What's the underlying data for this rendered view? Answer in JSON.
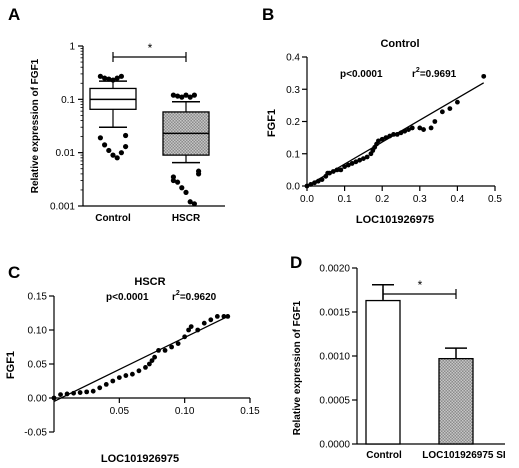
{
  "chart_data": [
    {
      "panel": "A",
      "type": "box",
      "ylabel": "Relative expression of FGF1",
      "yscale": "log",
      "ylim": [
        0.001,
        1
      ],
      "yticks": [
        "0.001",
        "0.01",
        "0.1",
        "1"
      ],
      "categories": [
        "Control",
        "HSCR"
      ],
      "significance": "*",
      "boxes": [
        {
          "name": "Control",
          "fill": "#ffffff",
          "whisker_low": 0.03,
          "q1": 0.065,
          "median": 0.1,
          "q3": 0.16,
          "whisker_high": 0.22,
          "outliers": [
            0.27,
            0.25,
            0.24,
            0.23,
            0.25,
            0.27,
            0.021,
            0.019,
            0.014,
            0.011,
            0.009,
            0.008,
            0.01,
            0.013
          ]
        },
        {
          "name": "HSCR",
          "fill": "#9a9a9a",
          "whisker_low": 0.0065,
          "q1": 0.009,
          "median": 0.023,
          "q3": 0.058,
          "whisker_high": 0.09,
          "outliers": [
            0.12,
            0.115,
            0.11,
            0.12,
            0.11,
            0.12,
            0.0045,
            0.0035,
            0.0028,
            0.0022,
            0.0018,
            0.0012,
            0.0011,
            0.004,
            0.003
          ]
        }
      ]
    },
    {
      "panel": "B",
      "type": "scatter",
      "title": "Control",
      "xlabel": "LOC101926975",
      "ylabel": "FGF1",
      "xlim": [
        0,
        0.5
      ],
      "ylim": [
        0,
        0.4
      ],
      "xticks": [
        "0.0",
        "0.1",
        "0.2",
        "0.3",
        "0.4",
        "0.5"
      ],
      "yticks": [
        "0.0",
        "0.1",
        "0.2",
        "0.3",
        "0.4"
      ],
      "p_value": "p<0.0001",
      "r2_prefix": "r",
      "r2_sup": "2",
      "r2_value": "=0.9691",
      "fit_line": [
        [
          0,
          0.0
        ],
        [
          0.47,
          0.32
        ]
      ],
      "points": [
        [
          0.0,
          0.0
        ],
        [
          0.01,
          0.005
        ],
        [
          0.02,
          0.01
        ],
        [
          0.03,
          0.015
        ],
        [
          0.04,
          0.02
        ],
        [
          0.05,
          0.03
        ],
        [
          0.055,
          0.04
        ],
        [
          0.06,
          0.04
        ],
        [
          0.07,
          0.045
        ],
        [
          0.08,
          0.05
        ],
        [
          0.09,
          0.05
        ],
        [
          0.1,
          0.06
        ],
        [
          0.11,
          0.065
        ],
        [
          0.12,
          0.07
        ],
        [
          0.13,
          0.075
        ],
        [
          0.14,
          0.08
        ],
        [
          0.15,
          0.085
        ],
        [
          0.16,
          0.09
        ],
        [
          0.17,
          0.1
        ],
        [
          0.175,
          0.11
        ],
        [
          0.18,
          0.12
        ],
        [
          0.185,
          0.13
        ],
        [
          0.19,
          0.14
        ],
        [
          0.2,
          0.145
        ],
        [
          0.21,
          0.15
        ],
        [
          0.22,
          0.155
        ],
        [
          0.23,
          0.16
        ],
        [
          0.24,
          0.16
        ],
        [
          0.25,
          0.165
        ],
        [
          0.26,
          0.17
        ],
        [
          0.27,
          0.175
        ],
        [
          0.28,
          0.18
        ],
        [
          0.3,
          0.18
        ],
        [
          0.31,
          0.175
        ],
        [
          0.33,
          0.18
        ],
        [
          0.34,
          0.2
        ],
        [
          0.36,
          0.23
        ],
        [
          0.38,
          0.24
        ],
        [
          0.4,
          0.26
        ],
        [
          0.47,
          0.34
        ]
      ]
    },
    {
      "panel": "C",
      "type": "scatter",
      "title": "HSCR",
      "xlabel": "LOC101926975",
      "ylabel": "FGF1",
      "xlim": [
        0,
        0.15
      ],
      "ylim": [
        -0.05,
        0.15
      ],
      "xticks": [
        "0.05",
        "0.10",
        "0.15"
      ],
      "yticks": [
        "-0.05",
        "0.00",
        "0.05",
        "0.10",
        "0.15"
      ],
      "p_value": "p<0.0001",
      "r2_prefix": "r",
      "r2_sup": "2",
      "r2_value": "=0.9620",
      "fit_line": [
        [
          0,
          -0.005
        ],
        [
          0.133,
          0.12
        ]
      ],
      "points": [
        [
          0.0,
          0.0
        ],
        [
          0.005,
          0.005
        ],
        [
          0.01,
          0.006
        ],
        [
          0.015,
          0.007
        ],
        [
          0.02,
          0.008
        ],
        [
          0.025,
          0.009
        ],
        [
          0.03,
          0.01
        ],
        [
          0.035,
          0.015
        ],
        [
          0.04,
          0.02
        ],
        [
          0.045,
          0.025
        ],
        [
          0.05,
          0.03
        ],
        [
          0.055,
          0.033
        ],
        [
          0.06,
          0.035
        ],
        [
          0.065,
          0.04
        ],
        [
          0.07,
          0.045
        ],
        [
          0.073,
          0.05
        ],
        [
          0.075,
          0.055
        ],
        [
          0.077,
          0.06
        ],
        [
          0.08,
          0.07
        ],
        [
          0.085,
          0.07
        ],
        [
          0.09,
          0.075
        ],
        [
          0.095,
          0.08
        ],
        [
          0.1,
          0.09
        ],
        [
          0.103,
          0.1
        ],
        [
          0.105,
          0.105
        ],
        [
          0.11,
          0.1
        ],
        [
          0.115,
          0.11
        ],
        [
          0.12,
          0.115
        ],
        [
          0.125,
          0.12
        ],
        [
          0.13,
          0.12
        ],
        [
          0.133,
          0.12
        ]
      ]
    },
    {
      "panel": "D",
      "type": "bar",
      "ylabel": "Relative expression of FGF1",
      "ylim": [
        0,
        0.002
      ],
      "yticks": [
        "0.0000",
        "0.0005",
        "0.0010",
        "0.0015",
        "0.0020"
      ],
      "categories": [
        "Control",
        "LOC101926975 SI"
      ],
      "values": [
        0.00163,
        0.00097
      ],
      "errors": [
        0.00018,
        0.00012
      ],
      "fills": [
        "#ffffff",
        "#9a9a9a"
      ],
      "significance": "*"
    }
  ]
}
